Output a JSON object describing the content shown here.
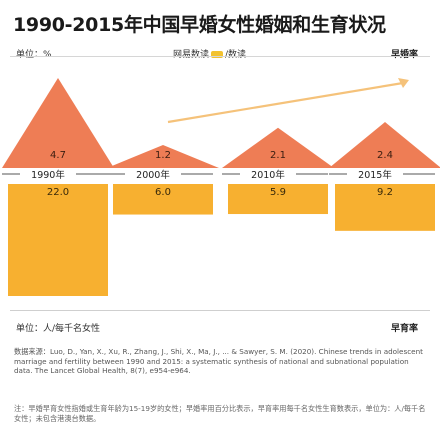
{
  "title": "1990-2015年中国早婚女性婚姻和生育状况",
  "unit_label": "单位：%",
  "source_label_pre": "网易数读",
  "source_label_post": "/数读",
  "top_series_label": "早婚率",
  "bottom_unit_label": "单位：人/每千名女性",
  "bottom_series_label": "早育率",
  "citation": "数据来源：Luo, D., Yan, X., Xu, R., Zhang, J., Shi, X., Ma, J., ... & Sawyer, S. M. (2020). Chinese trends in adolescent marriage and fertility between 1990 and 2015: a systematic synthesis of national and subnational population data. The Lancet Global Health, 8(7), e954-e964.",
  "note": "注：早婚早育女性指婚或生育年龄为15-19岁的女性；早婚率用百分比表示，早育率用每千名女性生育数表示，单位为：人/每千名女性；未包含港澳台数据。",
  "colors": {
    "marriage_peak": "#ee7d55",
    "fertility_bar": "#f7b030",
    "trend_arrow": "#f5c27a",
    "year_line": "#555555"
  },
  "chart_data": {
    "type": "bar",
    "categories": [
      "1990年",
      "2000年",
      "2010年",
      "2015年"
    ],
    "series": [
      {
        "name": "早婚率",
        "values": [
          4.7,
          1.2,
          2.1,
          2.4
        ]
      },
      {
        "name": "早育率",
        "values": [
          22.0,
          6.0,
          5.9,
          9.2
        ]
      }
    ],
    "units": [
      "%",
      "人/每千名女性"
    ]
  }
}
